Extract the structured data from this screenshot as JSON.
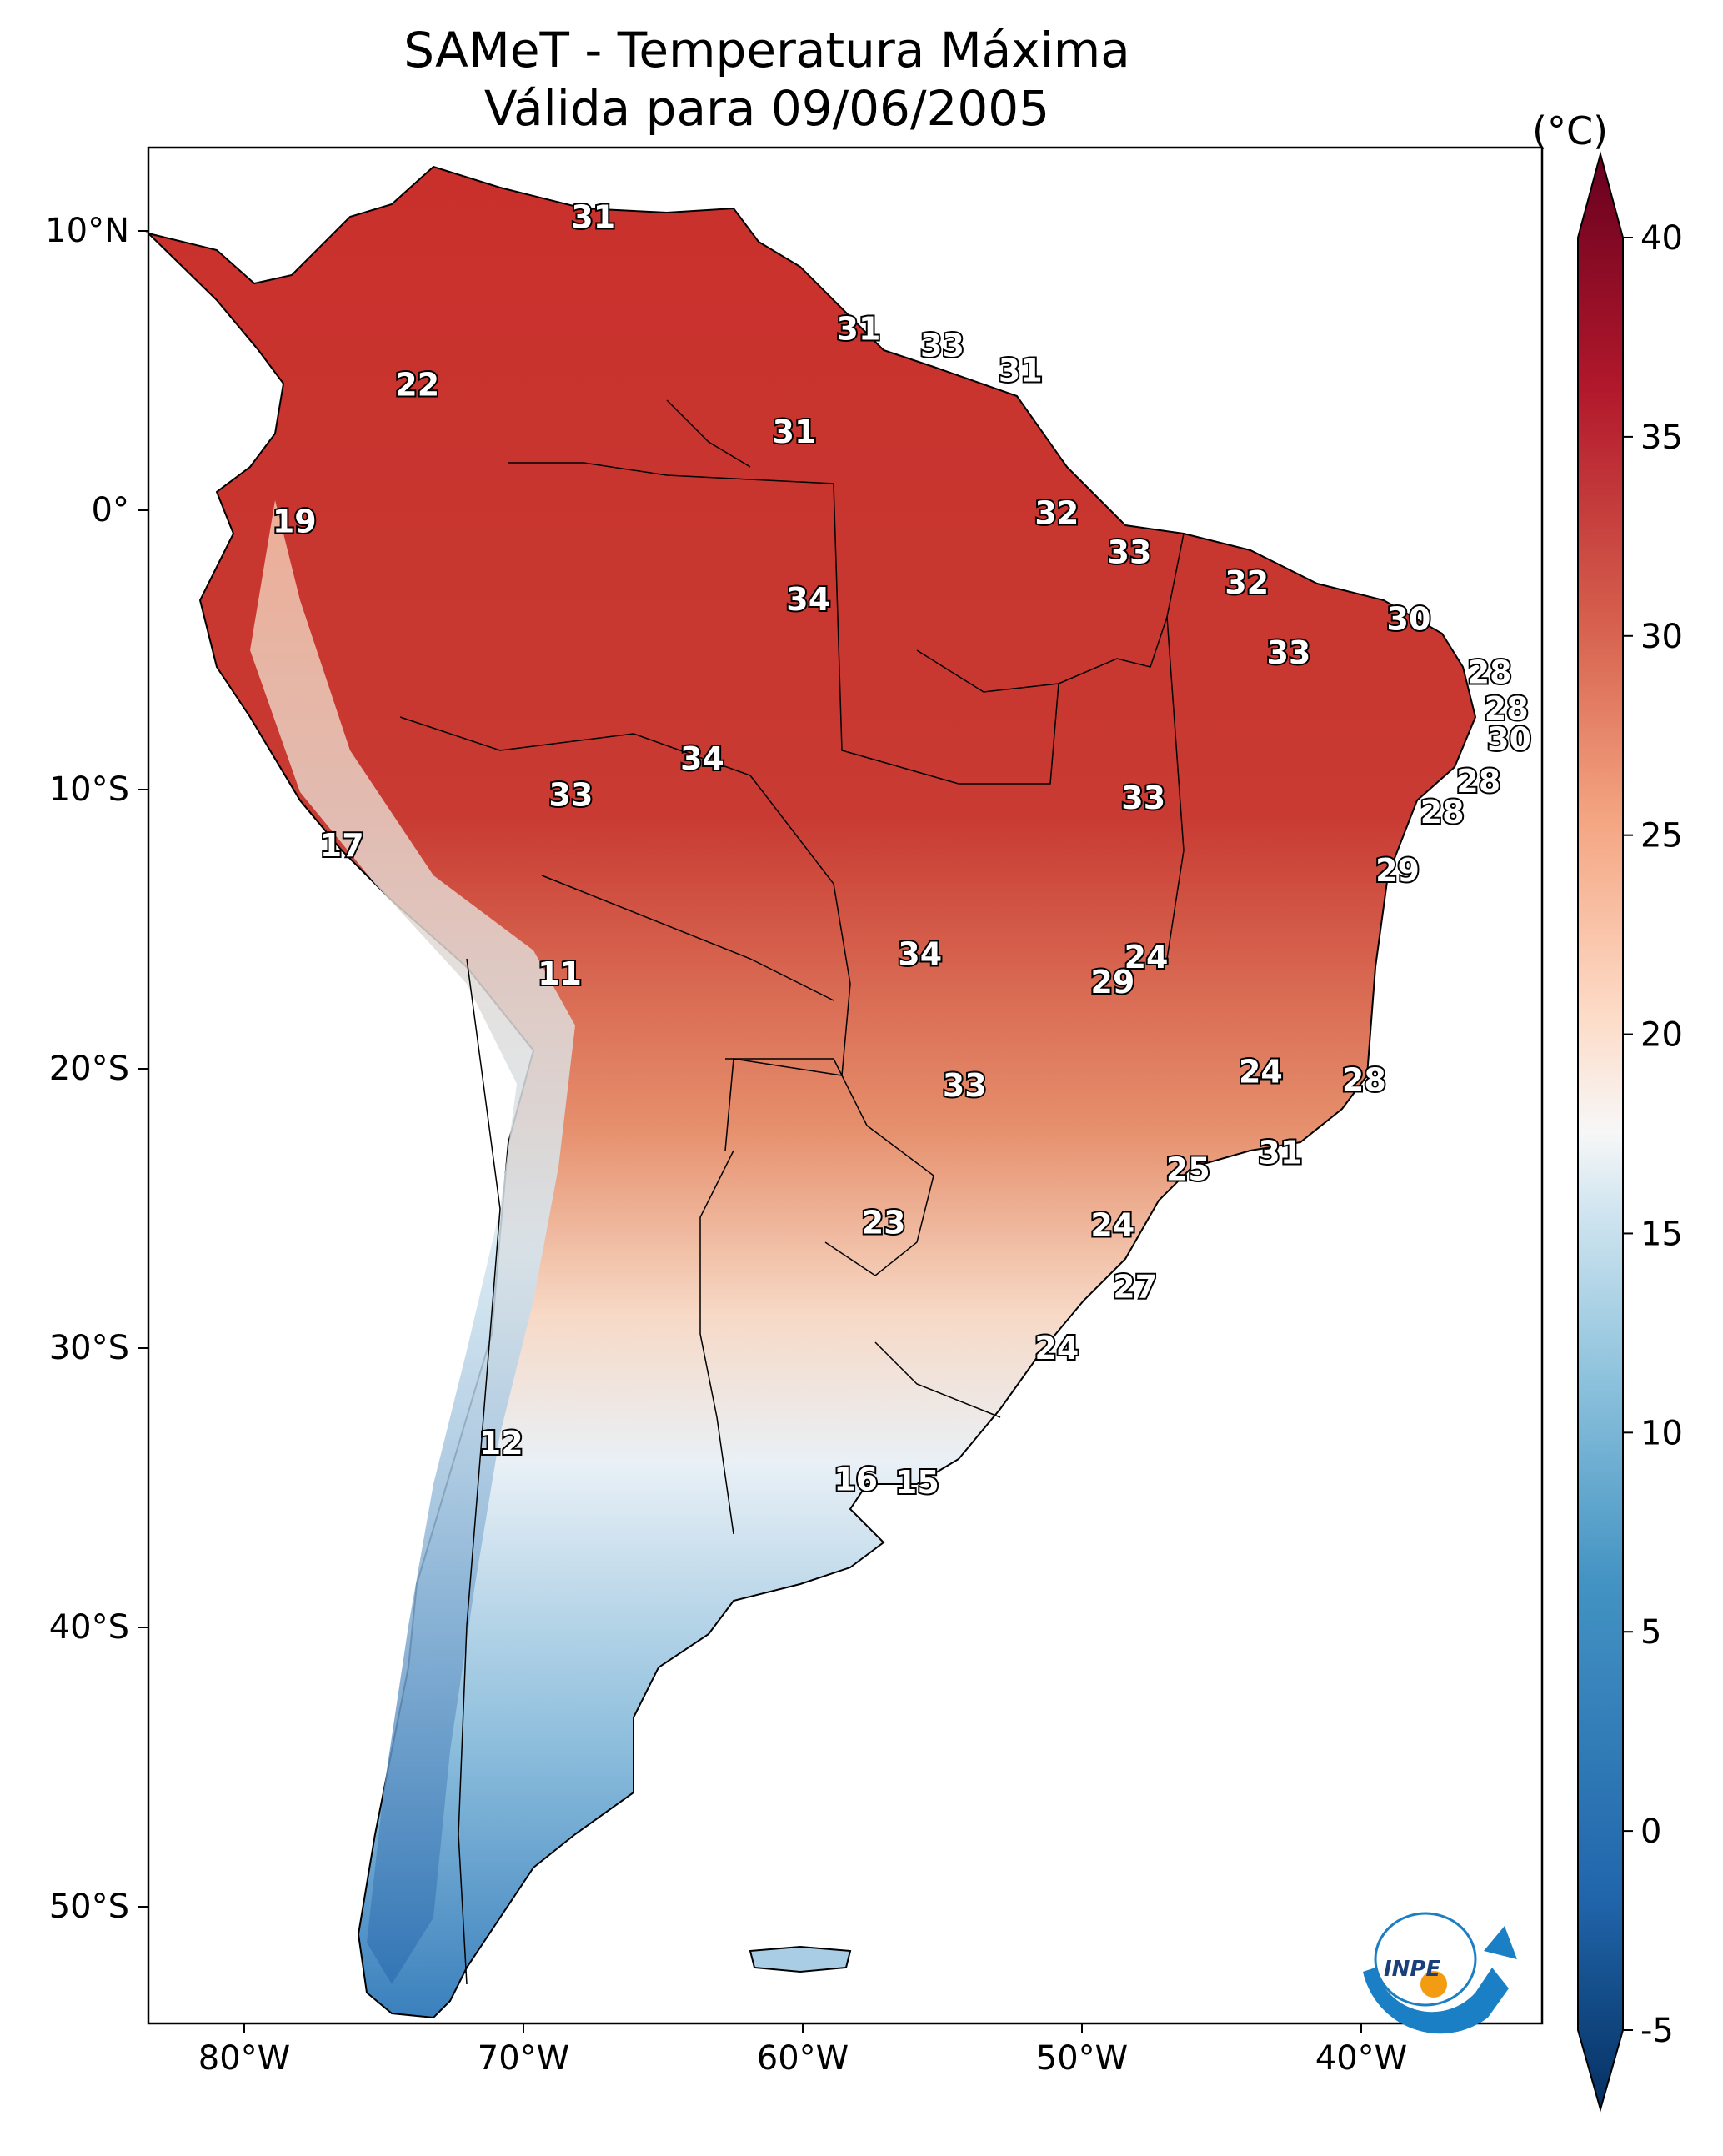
{
  "title": "SAMeT - Temperatura Máxima",
  "subtitle": "Válida para 09/06/2005",
  "colorbar": {
    "unit": "(°C)",
    "ticks": [
      40,
      35,
      30,
      25,
      20,
      15,
      10,
      5,
      0,
      -5
    ],
    "range": [
      -5,
      40
    ]
  },
  "axes": {
    "lat_ticks": [
      "10°N",
      "0°",
      "10°S",
      "20°S",
      "30°S",
      "40°S",
      "50°S"
    ],
    "lon_ticks": [
      "80°W",
      "70°W",
      "60°W",
      "50°W",
      "40°W"
    ]
  },
  "labels": [
    {
      "text": "31",
      "lon": -67.5,
      "lat": 10.5
    },
    {
      "text": "31",
      "lon": -58.0,
      "lat": 6.5
    },
    {
      "text": "33",
      "lon": -55.0,
      "lat": 5.9
    },
    {
      "text": "31",
      "lon": -52.2,
      "lat": 5.0
    },
    {
      "text": "22",
      "lon": -73.8,
      "lat": 4.5
    },
    {
      "text": "31",
      "lon": -60.3,
      "lat": 2.8
    },
    {
      "text": "19",
      "lon": -78.2,
      "lat": -0.4
    },
    {
      "text": "32",
      "lon": -50.9,
      "lat": -0.1
    },
    {
      "text": "33",
      "lon": -48.3,
      "lat": -1.5
    },
    {
      "text": "32",
      "lon": -44.1,
      "lat": -2.6
    },
    {
      "text": "34",
      "lon": -59.8,
      "lat": -3.2
    },
    {
      "text": "30",
      "lon": -38.3,
      "lat": -3.9
    },
    {
      "text": "33",
      "lon": -42.6,
      "lat": -5.1
    },
    {
      "text": "28",
      "lon": -35.4,
      "lat": -5.8
    },
    {
      "text": "28",
      "lon": -34.8,
      "lat": -7.1
    },
    {
      "text": "30",
      "lon": -34.7,
      "lat": -8.2
    },
    {
      "text": "34",
      "lon": -63.6,
      "lat": -8.9
    },
    {
      "text": "28",
      "lon": -35.8,
      "lat": -9.7
    },
    {
      "text": "33",
      "lon": -68.3,
      "lat": -10.2
    },
    {
      "text": "33",
      "lon": -47.8,
      "lat": -10.3
    },
    {
      "text": "28",
      "lon": -37.1,
      "lat": -10.8
    },
    {
      "text": "17",
      "lon": -76.5,
      "lat": -12.0
    },
    {
      "text": "29",
      "lon": -38.7,
      "lat": -12.9
    },
    {
      "text": "34",
      "lon": -55.8,
      "lat": -15.9
    },
    {
      "text": "24",
      "lon": -47.7,
      "lat": -16.0
    },
    {
      "text": "29",
      "lon": -48.9,
      "lat": -16.9
    },
    {
      "text": "11",
      "lon": -68.7,
      "lat": -16.6
    },
    {
      "text": "24",
      "lon": -43.6,
      "lat": -20.1
    },
    {
      "text": "28",
      "lon": -39.9,
      "lat": -20.4
    },
    {
      "text": "33",
      "lon": -54.2,
      "lat": -20.6
    },
    {
      "text": "31",
      "lon": -42.9,
      "lat": -23.0
    },
    {
      "text": "25",
      "lon": -46.2,
      "lat": -23.6
    },
    {
      "text": "23",
      "lon": -57.1,
      "lat": -25.5
    },
    {
      "text": "24",
      "lon": -48.9,
      "lat": -25.6
    },
    {
      "text": "27",
      "lon": -48.1,
      "lat": -27.8
    },
    {
      "text": "24",
      "lon": -50.9,
      "lat": -30.0
    },
    {
      "text": "12",
      "lon": -70.8,
      "lat": -33.4
    },
    {
      "text": "16",
      "lon": -58.1,
      "lat": -34.7
    },
    {
      "text": "15",
      "lon": -55.9,
      "lat": -34.8
    }
  ],
  "logo": {
    "icon": "inpe-logo",
    "text": "INPE",
    "colors": {
      "blue": "#1a7fc4",
      "orange": "#f39c12"
    }
  }
}
